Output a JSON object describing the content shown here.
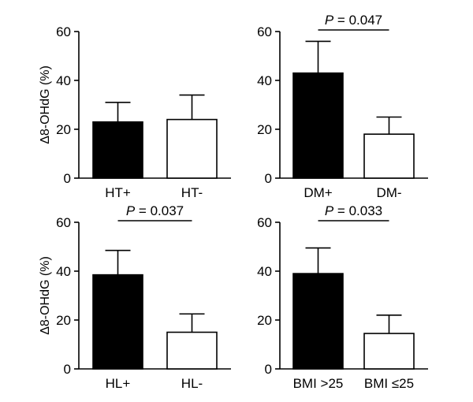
{
  "chart_data": [
    {
      "type": "bar",
      "panel": "top-left",
      "ylabel": "Δ8-OHdG (%)",
      "ylim": [
        0,
        60
      ],
      "yticks": [
        "0",
        "20",
        "40",
        "60"
      ],
      "categories": [
        "HT+",
        "HT-"
      ],
      "values": [
        23,
        24
      ],
      "errors": [
        8,
        10
      ],
      "colors": [
        "#000000",
        "#ffffff"
      ],
      "significance": null
    },
    {
      "type": "bar",
      "panel": "top-right",
      "ylabel": "",
      "ylim": [
        0,
        60
      ],
      "yticks": [
        "0",
        "20",
        "40",
        "60"
      ],
      "categories": [
        "DM+",
        "DM-"
      ],
      "values": [
        43,
        18
      ],
      "errors": [
        13,
        7
      ],
      "colors": [
        "#000000",
        "#ffffff"
      ],
      "significance": {
        "p_label": "P",
        "p_value": " = 0.047"
      }
    },
    {
      "type": "bar",
      "panel": "bottom-left",
      "ylabel": "Δ8-OHdG (%)",
      "ylim": [
        0,
        60
      ],
      "yticks": [
        "0",
        "20",
        "40",
        "60"
      ],
      "categories": [
        "HL+",
        "HL-"
      ],
      "values": [
        38.5,
        15
      ],
      "errors": [
        10,
        7.5
      ],
      "colors": [
        "#000000",
        "#ffffff"
      ],
      "significance": {
        "p_label": "P",
        "p_value": " = 0.037"
      }
    },
    {
      "type": "bar",
      "panel": "bottom-right",
      "ylabel": "",
      "ylim": [
        0,
        60
      ],
      "yticks": [
        "0",
        "20",
        "40",
        "60"
      ],
      "categories": [
        "BMI >25",
        "BMI ≤25"
      ],
      "values": [
        39,
        14.5
      ],
      "errors": [
        10.5,
        7.5
      ],
      "colors": [
        "#000000",
        "#ffffff"
      ],
      "significance": {
        "p_label": "P",
        "p_value": " = 0.033"
      }
    }
  ]
}
